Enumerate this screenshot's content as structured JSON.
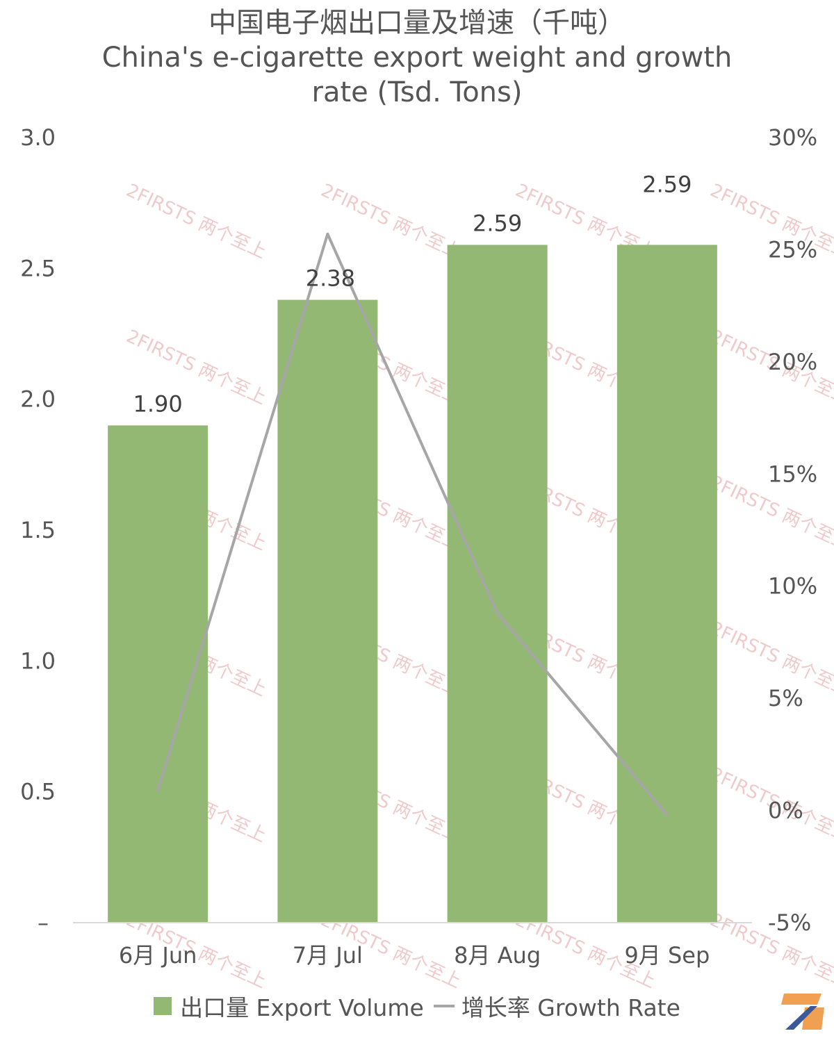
{
  "title": {
    "zh": "中国电子烟出口量及增速（千吨）",
    "en_line1": "China's e-cigarette export weight and growth",
    "en_line2": "rate (Tsd. Tons)"
  },
  "watermark": "2FIRSTS 两个至上",
  "colors": {
    "bar": "#93b874",
    "line": "#a6a6a6",
    "axis": "#d9d9d9",
    "logo_orange": "#f0a050",
    "logo_blue": "#3b5998"
  },
  "legend": {
    "bar_label": "出口量 Export Volume",
    "line_label": "增长率 Growth Rate"
  },
  "chart_data": {
    "type": "bar",
    "categories": [
      "6月 Jun",
      "7月 Jul",
      "8月 Aug",
      "9月 Sep"
    ],
    "series": [
      {
        "name": "出口量 Export Volume",
        "type": "bar",
        "axis": "left",
        "values": [
          1.9,
          2.38,
          2.59,
          2.59
        ],
        "data_labels": [
          "1.90",
          "2.38",
          "2.59",
          "2.59"
        ]
      },
      {
        "name": "增长率 Growth Rate",
        "type": "line",
        "axis": "right",
        "values": [
          0.9,
          25.7,
          8.8,
          -0.2
        ]
      }
    ],
    "y_left": {
      "ylim": [
        0,
        3.0
      ],
      "ticks": [
        "–",
        "0.5",
        "1.0",
        "1.5",
        "2.0",
        "2.5",
        "3.0"
      ],
      "tick_values": [
        0,
        0.5,
        1.0,
        1.5,
        2.0,
        2.5,
        3.0
      ]
    },
    "y_right": {
      "ylim": [
        -5,
        30
      ],
      "ticks": [
        "-5%",
        "0%",
        "5%",
        "10%",
        "15%",
        "20%",
        "25%",
        "30%"
      ],
      "tick_values": [
        -5,
        0,
        5,
        10,
        15,
        20,
        25,
        30
      ]
    },
    "grid": false,
    "legend_position": "bottom"
  }
}
